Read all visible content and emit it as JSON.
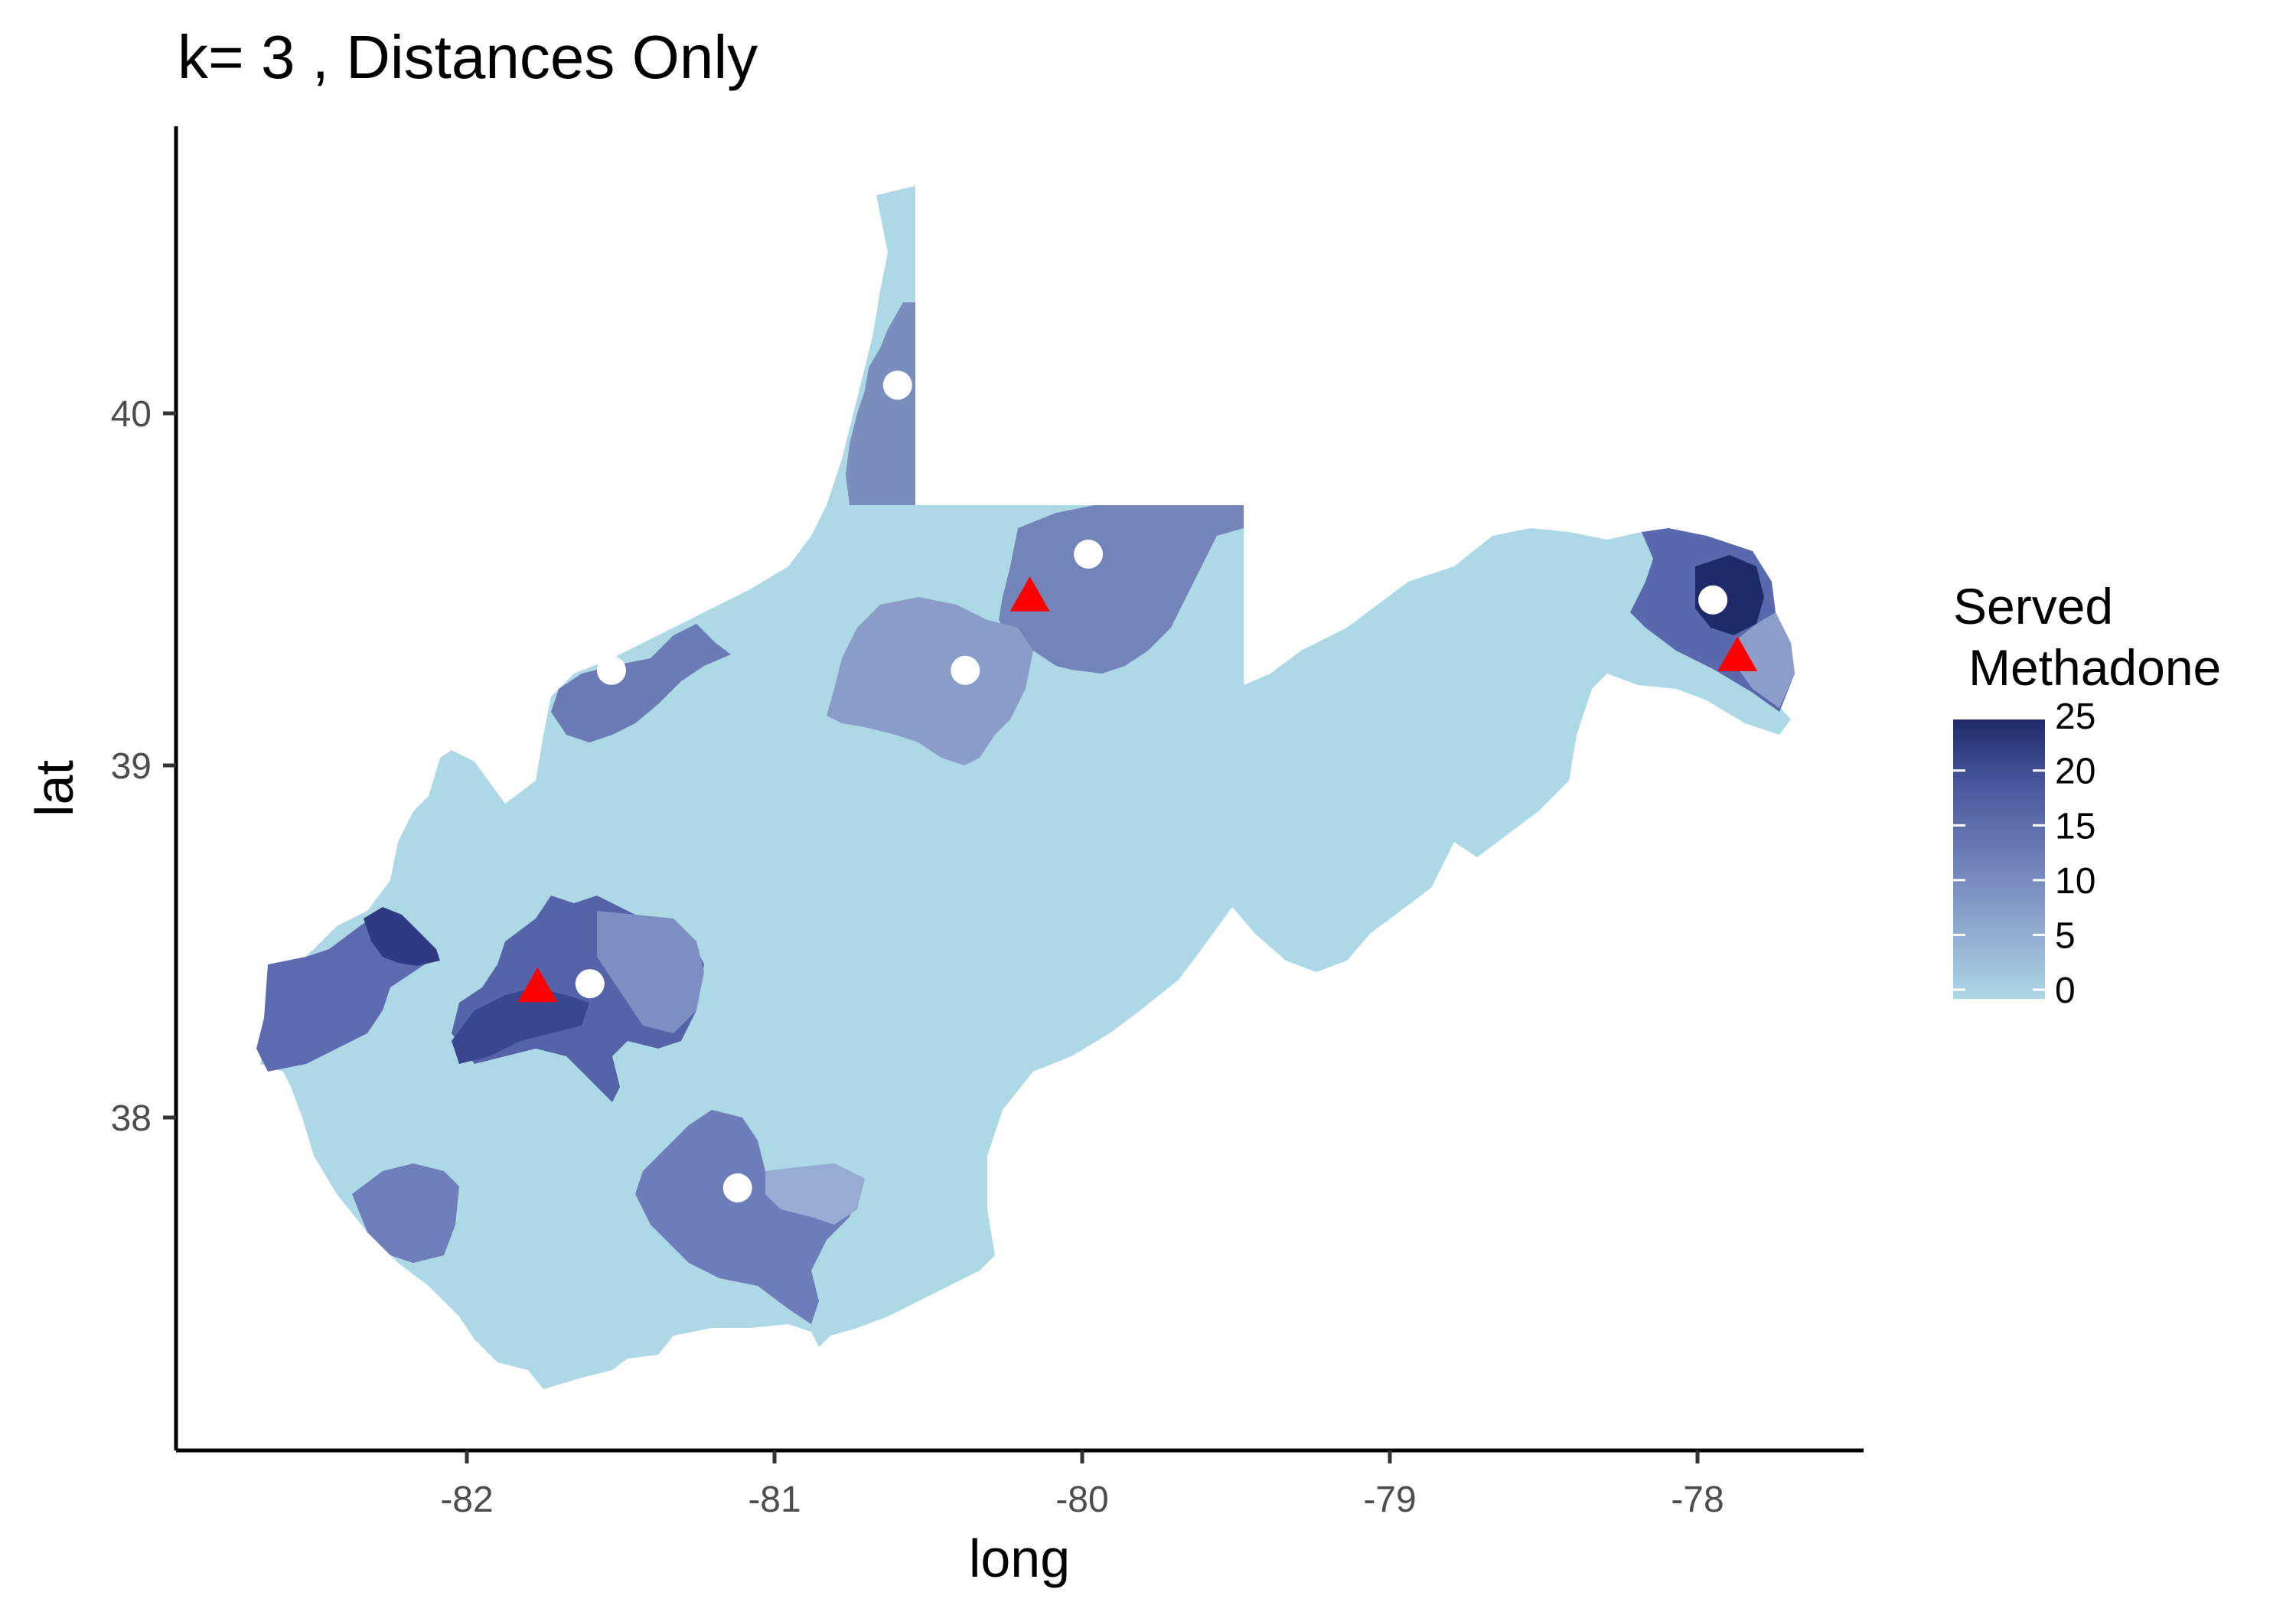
{
  "title": "k= 3 , Distances Only",
  "chart_data": {
    "type": "map",
    "title": "k= 3 , Distances Only",
    "xlabel": "long",
    "ylabel": "lat",
    "xlim": [
      -82.9,
      -77.5
    ],
    "ylim": [
      37.1,
      40.9
    ],
    "x_ticks": [
      "-82",
      "-81",
      "-80",
      "-79",
      "-78"
    ],
    "y_ticks": [
      "38",
      "39",
      "40"
    ],
    "legend": {
      "title_line1": "Served",
      "title_line2": "Methadone",
      "labels": [
        "25",
        "20",
        "15",
        "10",
        "5",
        "0"
      ],
      "values": [
        25,
        20,
        15,
        10,
        5,
        0
      ],
      "low_color": "#add8e6",
      "high_color": "#1f2a6b",
      "placement": "right"
    },
    "base_fill": "#add8e6",
    "facility_circles": [
      {
        "long": -80.6,
        "lat": 40.08
      },
      {
        "long": -79.98,
        "lat": 39.6
      },
      {
        "long": -81.53,
        "lat": 39.27
      },
      {
        "long": -80.38,
        "lat": 39.27
      },
      {
        "long": -81.6,
        "lat": 38.38
      },
      {
        "long": -81.12,
        "lat": 37.8
      },
      {
        "long": -77.95,
        "lat": 39.47
      }
    ],
    "selected_triangles": [
      {
        "long": -81.77,
        "lat": 38.37
      },
      {
        "long": -80.17,
        "lat": 39.48
      },
      {
        "long": -77.87,
        "lat": 39.31
      }
    ],
    "circle_color": "#ffffff",
    "triangle_color": "#ff0000"
  }
}
